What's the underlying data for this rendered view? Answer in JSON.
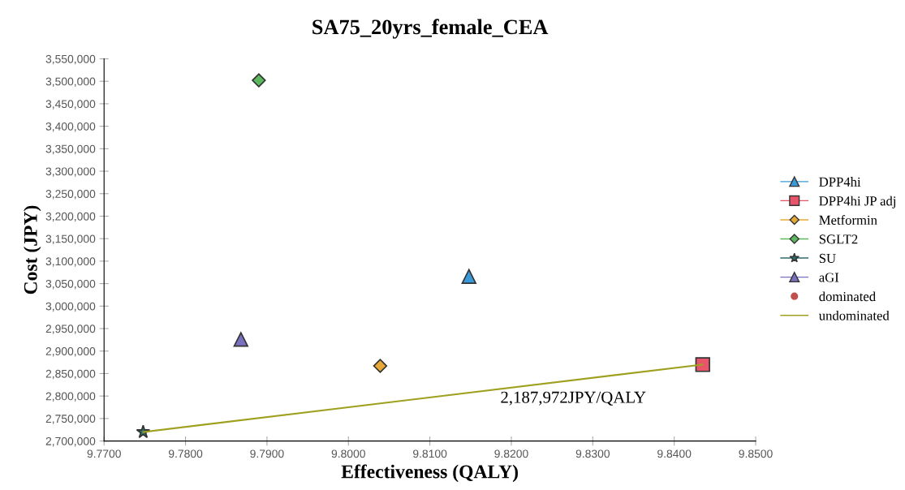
{
  "chart_data": {
    "type": "scatter",
    "title": "SA75_20yrs_female_CEA",
    "xlabel": "Effectiveness (QALY)",
    "ylabel": "Cost (JPY)",
    "xlim": [
      9.77,
      9.85
    ],
    "xticks": [
      {
        "value": 9.77,
        "label": "9.7700"
      },
      {
        "value": 9.78,
        "label": "9.7800"
      },
      {
        "value": 9.79,
        "label": "9.7900"
      },
      {
        "value": 9.8,
        "label": "9.8000"
      },
      {
        "value": 9.81,
        "label": "9.8100"
      },
      {
        "value": 9.82,
        "label": "9.8200"
      },
      {
        "value": 9.83,
        "label": "9.8300"
      },
      {
        "value": 9.84,
        "label": "9.8400"
      },
      {
        "value": 9.85,
        "label": "9.8500"
      }
    ],
    "ylim": [
      2700000,
      3550000
    ],
    "yticks": [
      {
        "value": 2700000,
        "label": "2,700,000"
      },
      {
        "value": 2750000,
        "label": "2,750,000"
      },
      {
        "value": 2800000,
        "label": "2,800,000"
      },
      {
        "value": 2850000,
        "label": "2,850,000"
      },
      {
        "value": 2900000,
        "label": "2,900,000"
      },
      {
        "value": 2950000,
        "label": "2,950,000"
      },
      {
        "value": 3000000,
        "label": "3,000,000"
      },
      {
        "value": 3050000,
        "label": "3,050,000"
      },
      {
        "value": 3100000,
        "label": "3,100,000"
      },
      {
        "value": 3150000,
        "label": "3,150,000"
      },
      {
        "value": 3200000,
        "label": "3,200,000"
      },
      {
        "value": 3250000,
        "label": "3,250,000"
      },
      {
        "value": 3300000,
        "label": "3,300,000"
      },
      {
        "value": 3350000,
        "label": "3,350,000"
      },
      {
        "value": 3400000,
        "label": "3,400,000"
      },
      {
        "value": 3450000,
        "label": "3,450,000"
      },
      {
        "value": 3500000,
        "label": "3,500,000"
      },
      {
        "value": 3550000,
        "label": "3,550,000"
      }
    ],
    "grid": false,
    "legend": "right",
    "series": [
      {
        "name": "DPP4hi",
        "color": "#3a9ad9",
        "marker": "triangle",
        "x": [
          9.8148
        ],
        "values": [
          3066000
        ]
      },
      {
        "name": "DPP4hi JP adj",
        "color": "#e8546a",
        "marker": "square",
        "x": [
          9.8435
        ],
        "values": [
          2870000
        ]
      },
      {
        "name": "Metformin",
        "color": "#e8a838",
        "marker": "diamond",
        "x": [
          9.8039
        ],
        "values": [
          2867000
        ]
      },
      {
        "name": "SGLT2",
        "color": "#5cb85c",
        "marker": "diamond",
        "x": [
          9.789
        ],
        "values": [
          3502000
        ]
      },
      {
        "name": "SU",
        "color": "#2e6b6b",
        "marker": "star",
        "x": [
          9.7748
        ],
        "values": [
          2720000
        ]
      },
      {
        "name": "aGI",
        "color": "#7a70c0",
        "marker": "triangle",
        "x": [
          9.7868
        ],
        "values": [
          2926000
        ]
      },
      {
        "name": "dominated",
        "color": "#c0504d",
        "marker": "circle"
      },
      {
        "name": "undominated",
        "color": "#a0a020",
        "type": "line",
        "x": [
          9.7748,
          9.8435
        ],
        "values": [
          2720000,
          2870000
        ]
      }
    ],
    "annotations": [
      "2,187,972JPY/QALY"
    ]
  }
}
